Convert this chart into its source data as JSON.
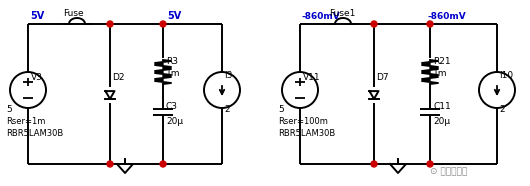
{
  "bg_color": "#ffffff",
  "line_color": "#000000",
  "node_color": "#cc0000",
  "label_color": "#0000cc",
  "text_color": "#000000",
  "circuit1": {
    "voltage_label_left": "5V",
    "voltage_label_right": "5V",
    "fuse_label": "Fuse",
    "source_label": "V3",
    "source_node": "5",
    "source_rser": "Rser=1m",
    "source_part": "RBR5LAM30B",
    "diode_label": "D2",
    "resistor_label": "R3",
    "resistor_val": "1m",
    "cap_label": "C3",
    "cap_val": "20μ",
    "current_label": "I3",
    "current_node": "2"
  },
  "circuit2": {
    "voltage_label_left": "-860mV",
    "voltage_label_right": "-860mV",
    "fuse_label": "Fuse1",
    "source_label": "V11",
    "source_node": "5",
    "source_rser": "Rser=100m",
    "source_part": "RBR5LAM30B",
    "diode_label": "D7",
    "resistor_label": "R21",
    "resistor_val": "1m",
    "cap_label": "C11",
    "cap_val": "20μ",
    "current_label": "I10",
    "current_node": "2"
  },
  "watermark": "电路一点通"
}
